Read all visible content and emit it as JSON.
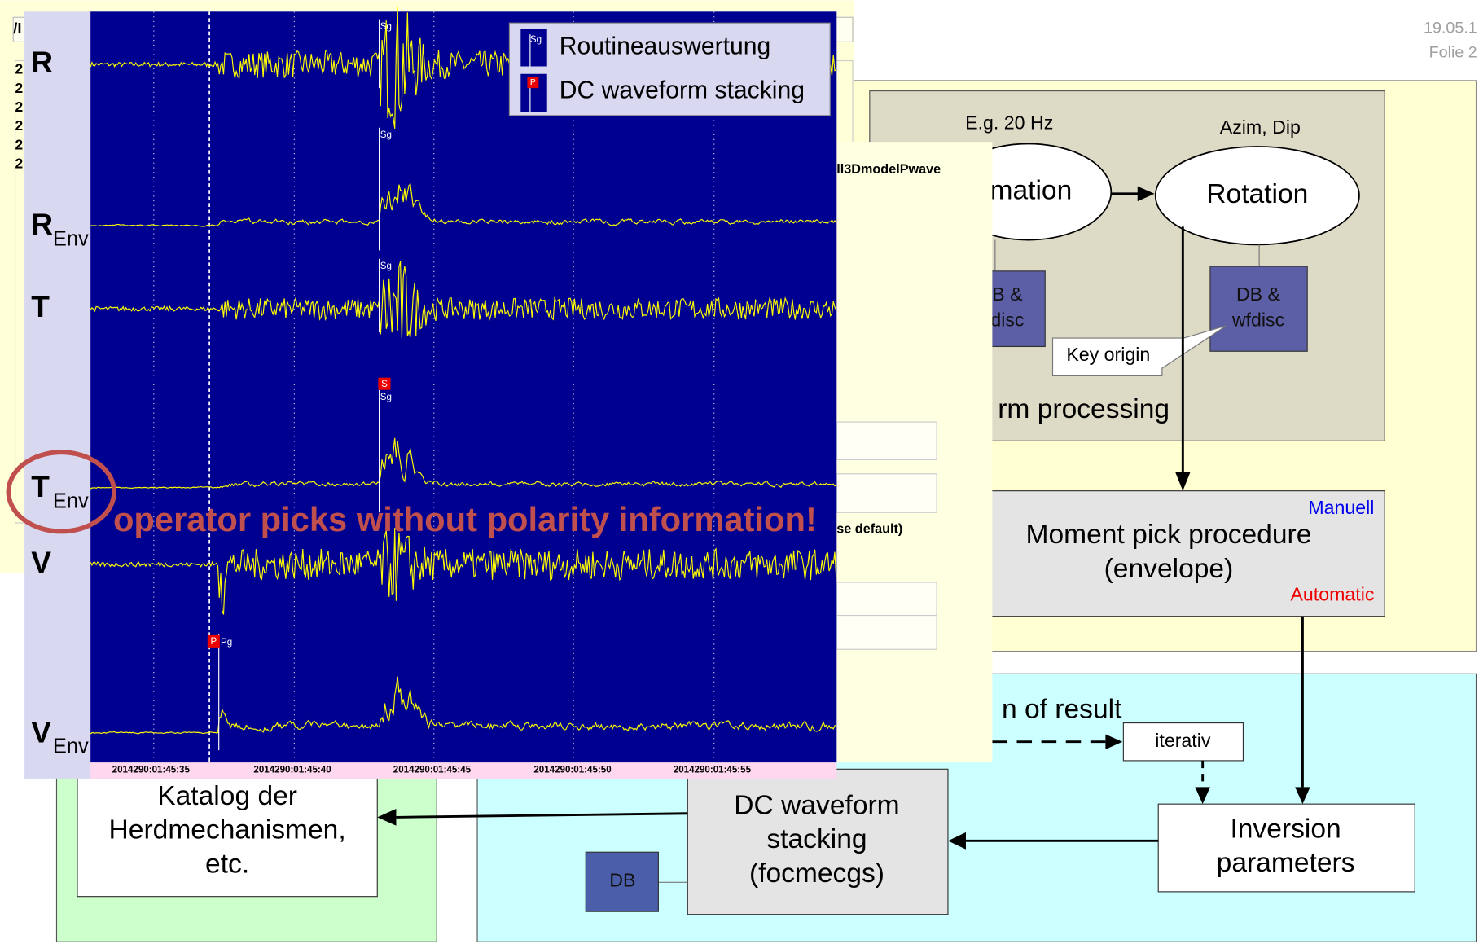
{
  "header": {
    "date": "19.05.1",
    "slide": "Folie 2"
  },
  "background_window": {
    "title_fragment": "/I",
    "row_fragments": [
      "2",
      "2",
      "2",
      "2",
      "2",
      "2"
    ],
    "model_fragment": "ll3DmodelPwave",
    "option_fragment": "se default)"
  },
  "flowchart": {
    "frequency_note": "E.g. 20 Hz",
    "transformation": "mation",
    "angles_note": "Azim, Dip",
    "rotation": "Rotation",
    "db_left": [
      "B &",
      "disc"
    ],
    "db_right": [
      "DB &",
      "wfdisc"
    ],
    "key_origin": "Key origin",
    "processing": "rm processing",
    "manual": "Manuell",
    "moment_pick": [
      "Moment pick procedure",
      "(envelope)"
    ],
    "automatic": "Automatic",
    "result": "n of result",
    "iterativ": "iterativ",
    "inversion": [
      "Inversion",
      "parameters"
    ],
    "dc_stacking": [
      "DC waveform",
      "stacking",
      "(focmecgs)"
    ],
    "db_bottom": "DB",
    "katalog": [
      "Katalog der",
      "Herdmechanismen,",
      "etc."
    ]
  },
  "seismogram": {
    "traces": [
      {
        "label": "R"
      },
      {
        "label": "R",
        "sub": "Env"
      },
      {
        "label": "T"
      },
      {
        "label": "T",
        "sub": "Env"
      },
      {
        "label": "V"
      },
      {
        "label": "V",
        "sub": "Env"
      }
    ],
    "legend": [
      "Routineauswertung",
      "DC waveform stacking"
    ],
    "legend_icons": [
      "Sg",
      "P"
    ],
    "picks": [
      "Sg",
      "Sg",
      "Sg",
      "Sg"
    ],
    "markers": [
      "S",
      "P",
      "Pg"
    ],
    "times": [
      "2014290:01:45:35",
      "2014290:01:45:40",
      "2014290:01:45:45",
      "2014290:01:45:50",
      "2014290:01:45:55"
    ],
    "annotation": "operator picks without polarity information!"
  }
}
